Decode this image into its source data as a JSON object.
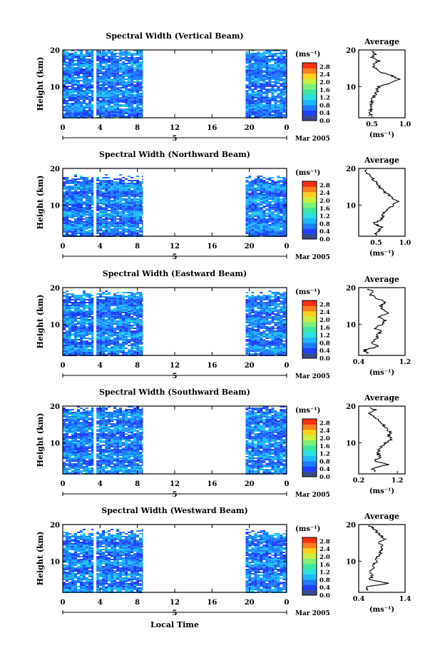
{
  "xlabel": "Local Time",
  "date_label": "Mar 2005",
  "day_label": "5",
  "chart_data": [
    {
      "type": "heatmap",
      "title": "Spectral Width (Vertical Beam)",
      "ylabel": "Height (km)",
      "x_ticks": [
        "0",
        "4",
        "8",
        "12",
        "16",
        "20",
        "0"
      ],
      "xlim": [
        0,
        24
      ],
      "y_ticks": [
        "20",
        "10"
      ],
      "ylim": [
        1.5,
        20
      ],
      "data_gaps_hours": [
        [
          3.3,
          3.6
        ],
        [
          8.6,
          19.6
        ]
      ],
      "colorbar": {
        "unit": "(ms⁻¹)",
        "ticks": [
          "2.8",
          "2.4",
          "2.0",
          "1.6",
          "1.2",
          "0.8",
          "0.4",
          "0.0"
        ],
        "range": [
          0,
          3.0
        ],
        "colors": [
          "#3a4a8c",
          "#2040ff",
          "#1e7cff",
          "#1fb8ff",
          "#2ee0e0",
          "#3ee6a0",
          "#7ef07a",
          "#c8f040",
          "#ffd020",
          "#ff8020",
          "#ff3010"
        ]
      },
      "average_profile": {
        "title": "Average",
        "xlabel": "(ms⁻¹)",
        "x_ticks": [
          "0.5",
          "1.0"
        ],
        "xlim": [
          0.3,
          1.0
        ],
        "y_ticks": [
          "20",
          "10"
        ],
        "ylim": [
          1.5,
          20
        ],
        "heights": [
          2,
          3,
          4,
          5,
          6,
          7,
          8,
          9,
          10,
          11,
          12,
          13,
          14,
          15,
          16,
          17,
          18,
          19,
          19.8
        ],
        "values": [
          0.48,
          0.46,
          0.5,
          0.48,
          0.5,
          0.52,
          0.56,
          0.58,
          0.6,
          0.78,
          0.9,
          0.8,
          0.62,
          0.55,
          0.52,
          0.6,
          0.5,
          0.55,
          0.48
        ]
      }
    },
    {
      "type": "heatmap",
      "title": "Spectral Width (Northward Beam)",
      "ylabel": "Height (km)",
      "x_ticks": [
        "0",
        "4",
        "8",
        "12",
        "16",
        "20",
        "0"
      ],
      "xlim": [
        0,
        24
      ],
      "y_ticks": [
        "20",
        "10"
      ],
      "ylim": [
        1.5,
        20
      ],
      "data_gaps_hours": [
        [
          3.3,
          3.6
        ],
        [
          8.6,
          19.6
        ]
      ],
      "colorbar": {
        "unit": "(ms⁻¹)",
        "ticks": [
          "2.8",
          "2.4",
          "2.0",
          "1.6",
          "1.2",
          "0.8",
          "0.4",
          "0.0"
        ],
        "range": [
          0,
          3.0
        ],
        "colors": [
          "#3a4a8c",
          "#2040ff",
          "#1e7cff",
          "#1fb8ff",
          "#2ee0e0",
          "#3ee6a0",
          "#7ef07a",
          "#c8f040",
          "#ffd020",
          "#ff8020",
          "#ff3010"
        ]
      },
      "average_profile": {
        "title": "Average",
        "xlabel": "(ms⁻¹)",
        "x_ticks": [
          "0.5",
          "1.0"
        ],
        "xlim": [
          0.2,
          1.0
        ],
        "y_ticks": [
          "20",
          "10"
        ],
        "ylim": [
          1.5,
          20
        ],
        "heights": [
          2,
          3,
          4,
          5,
          6,
          7,
          8,
          9,
          10,
          11,
          12,
          13,
          14,
          15,
          16,
          17,
          18,
          19,
          19.8
        ],
        "values": [
          0.5,
          0.55,
          0.6,
          0.45,
          0.6,
          0.62,
          0.65,
          0.7,
          0.8,
          0.88,
          0.78,
          0.7,
          0.62,
          0.55,
          0.5,
          0.45,
          0.42,
          0.3,
          0.38
        ]
      }
    },
    {
      "type": "heatmap",
      "title": "Spectral Width (Eastward Beam)",
      "ylabel": "Height (km)",
      "x_ticks": [
        "0",
        "4",
        "8",
        "12",
        "16",
        "20",
        "0"
      ],
      "xlim": [
        0,
        24
      ],
      "y_ticks": [
        "20",
        "10"
      ],
      "ylim": [
        1.5,
        20
      ],
      "data_gaps_hours": [
        [
          3.3,
          3.6
        ],
        [
          8.6,
          19.6
        ]
      ],
      "colorbar": {
        "unit": "(ms⁻¹)",
        "ticks": [
          "2.8",
          "2.4",
          "2.0",
          "1.6",
          "1.2",
          "0.8",
          "0.4",
          "0.0"
        ],
        "range": [
          0,
          3.0
        ],
        "colors": [
          "#3a4a8c",
          "#2040ff",
          "#1e7cff",
          "#1fb8ff",
          "#2ee0e0",
          "#3ee6a0",
          "#7ef07a",
          "#c8f040",
          "#ffd020",
          "#ff8020",
          "#ff3010"
        ]
      },
      "average_profile": {
        "title": "Average",
        "xlabel": "(ms⁻¹)",
        "x_ticks": [
          "0.4",
          "1.2"
        ],
        "xlim": [
          0.4,
          1.2
        ],
        "y_ticks": [
          "20",
          "10"
        ],
        "ylim": [
          1.5,
          20
        ],
        "heights": [
          2,
          3,
          4,
          5,
          6,
          7,
          8,
          9,
          10,
          11,
          12,
          13,
          14,
          15,
          16,
          17,
          18,
          19,
          19.8
        ],
        "values": [
          0.55,
          0.5,
          0.75,
          0.6,
          0.7,
          0.72,
          0.78,
          0.68,
          0.8,
          0.85,
          0.75,
          0.9,
          0.82,
          0.78,
          0.88,
          0.72,
          0.62,
          0.65,
          0.52
        ]
      }
    },
    {
      "type": "heatmap",
      "title": "Spectral Width (Southward Beam)",
      "ylabel": "Height (km)",
      "x_ticks": [
        "0",
        "4",
        "8",
        "12",
        "16",
        "20",
        "0"
      ],
      "xlim": [
        0,
        24
      ],
      "y_ticks": [
        "20",
        "10"
      ],
      "ylim": [
        1.5,
        20
      ],
      "data_gaps_hours": [
        [
          3.3,
          3.6
        ],
        [
          8.6,
          19.6
        ]
      ],
      "colorbar": {
        "unit": "(ms⁻¹)",
        "ticks": [
          "2.8",
          "2.4",
          "2.0",
          "1.6",
          "1.2",
          "0.8",
          "0.4",
          "0.0"
        ],
        "range": [
          0,
          3.0
        ],
        "colors": [
          "#3a4a8c",
          "#2040ff",
          "#1e7cff",
          "#1fb8ff",
          "#2ee0e0",
          "#3ee6a0",
          "#7ef07a",
          "#c8f040",
          "#ffd020",
          "#ff8020",
          "#ff3010"
        ]
      },
      "average_profile": {
        "title": "Average",
        "xlabel": "(ms⁻¹)",
        "x_ticks": [
          "0.2",
          "1.2"
        ],
        "xlim": [
          0.2,
          1.4
        ],
        "y_ticks": [
          "20",
          "10"
        ],
        "ylim": [
          1.5,
          20
        ],
        "heights": [
          2,
          3,
          4,
          5,
          6,
          7,
          8,
          9,
          10,
          11,
          12,
          13,
          14,
          15,
          16,
          17,
          18,
          19,
          19.8
        ],
        "values": [
          0.6,
          0.55,
          0.95,
          0.6,
          0.75,
          0.7,
          0.72,
          0.8,
          0.9,
          1.05,
          0.98,
          1.02,
          0.9,
          0.82,
          0.7,
          0.6,
          0.5,
          0.62,
          0.45
        ]
      }
    },
    {
      "type": "heatmap",
      "title": "Spectral Width (Westward Beam)",
      "ylabel": "Height (km)",
      "x_ticks": [
        "0",
        "4",
        "8",
        "12",
        "16",
        "20",
        "0"
      ],
      "xlim": [
        0,
        24
      ],
      "y_ticks": [
        "20",
        "10"
      ],
      "ylim": [
        1.5,
        20
      ],
      "data_gaps_hours": [
        [
          3.3,
          3.6
        ],
        [
          8.6,
          19.6
        ]
      ],
      "colorbar": {
        "unit": "(ms⁻¹)",
        "ticks": [
          "2.8",
          "2.4",
          "2.0",
          "1.6",
          "1.2",
          "0.8",
          "0.4",
          "0.0"
        ],
        "range": [
          0,
          3.0
        ],
        "colors": [
          "#3a4a8c",
          "#2040ff",
          "#1e7cff",
          "#1fb8ff",
          "#2ee0e0",
          "#3ee6a0",
          "#7ef07a",
          "#c8f040",
          "#ffd020",
          "#ff8020",
          "#ff3010"
        ]
      },
      "average_profile": {
        "title": "Average",
        "xlabel": "(ms⁻¹)",
        "x_ticks": [
          "0.4",
          "1.4"
        ],
        "xlim": [
          0.4,
          1.4
        ],
        "y_ticks": [
          "20",
          "10"
        ],
        "ylim": [
          1.5,
          20
        ],
        "heights": [
          2,
          3,
          4,
          5,
          6,
          7,
          8,
          9,
          10,
          11,
          12,
          13,
          14,
          15,
          16,
          17,
          18,
          19,
          19.8
        ],
        "values": [
          0.6,
          0.55,
          1.05,
          0.62,
          0.7,
          0.65,
          0.7,
          0.72,
          0.8,
          0.78,
          0.85,
          0.9,
          0.92,
          0.85,
          0.95,
          0.88,
          0.8,
          0.72,
          0.6
        ]
      }
    }
  ]
}
